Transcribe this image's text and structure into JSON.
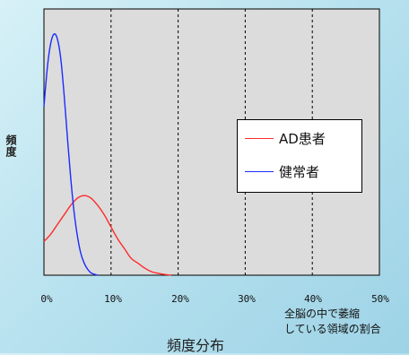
{
  "chart_data": {
    "type": "line",
    "title": "",
    "ylabel": "頻度",
    "xlabel_right": [
      "全脳の中で萎縮",
      "している領域の割合"
    ],
    "xlabel_bottom": "頻度分布",
    "xlim": [
      0,
      50
    ],
    "x_ticks": [
      "0%",
      "10%",
      "20%",
      "30%",
      "40%",
      "50%"
    ],
    "grid": "vertical-dashed",
    "legend_position": "right",
    "series": [
      {
        "name": "AD患者",
        "color": "#ff2a2a",
        "x": [
          0,
          1,
          2,
          3,
          4,
          5,
          6,
          7,
          8,
          9,
          10,
          11,
          12,
          13,
          14,
          15,
          16,
          17,
          18,
          19
        ],
        "y": [
          0.14,
          0.17,
          0.21,
          0.25,
          0.29,
          0.32,
          0.33,
          0.32,
          0.29,
          0.25,
          0.2,
          0.15,
          0.11,
          0.07,
          0.05,
          0.03,
          0.015,
          0.008,
          0.003,
          0.0
        ]
      },
      {
        "name": "健常者",
        "color": "#1a2cff",
        "x": [
          0,
          0.5,
          1,
          1.5,
          2,
          2.5,
          3,
          3.5,
          4,
          4.5,
          5,
          5.5,
          6,
          6.5,
          7,
          7.5,
          8
        ],
        "y": [
          0.7,
          0.86,
          0.96,
          1.0,
          0.98,
          0.9,
          0.75,
          0.57,
          0.4,
          0.26,
          0.16,
          0.09,
          0.05,
          0.025,
          0.01,
          0.004,
          0.0
        ]
      }
    ]
  }
}
